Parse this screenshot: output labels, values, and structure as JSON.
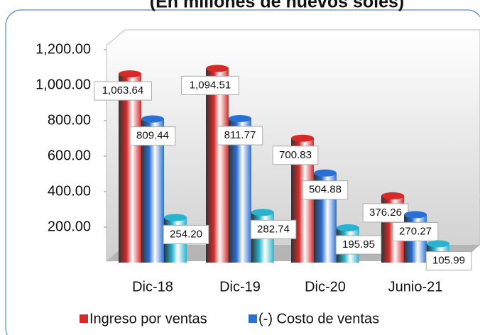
{
  "chart_data": {
    "type": "bar",
    "title": "(En millones de nuevos soles)",
    "categories": [
      "Dic-18",
      "Dic-19",
      "Dic-20",
      "Junio-21"
    ],
    "series": [
      {
        "name": "Ingreso por ventas",
        "color": "#d42a2a",
        "values": [
          1063.64,
          1094.51,
          700.83,
          376.26
        ],
        "value_labels": [
          "1,063.64",
          "1,094.51",
          "700.83",
          "376.26"
        ]
      },
      {
        "name": "(-) Costo de ventas",
        "color": "#2a6fd4",
        "values": [
          809.44,
          811.77,
          504.88,
          270.27
        ],
        "value_labels": [
          "809.44",
          "811.77",
          "504.88",
          "270.27"
        ]
      },
      {
        "color": "#28b4d0",
        "values": [
          254.2,
          282.74,
          195.95,
          105.99
        ],
        "value_labels": [
          "254.20",
          "282.74",
          "195.95",
          "105.99"
        ]
      }
    ],
    "ylim": [
      0,
      1300
    ],
    "yticks": [
      {
        "value": 200,
        "label": "200.00"
      },
      {
        "value": 400,
        "label": "400.00"
      },
      {
        "value": 600,
        "label": "600.00"
      },
      {
        "value": 800,
        "label": "800.00"
      },
      {
        "value": 1000,
        "label": "1,000.00"
      },
      {
        "value": 1200,
        "label": "1,200.00"
      }
    ],
    "legend": "bottom"
  }
}
